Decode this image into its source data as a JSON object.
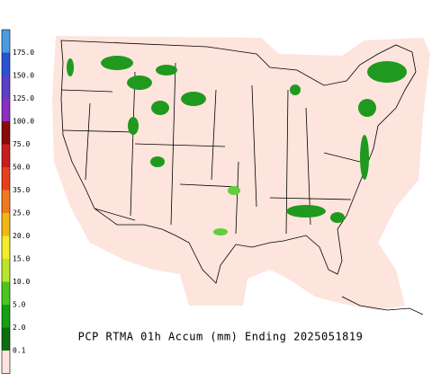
{
  "title": "PCP RTMA 01h Accum (mm) Ending 2025051819",
  "legend": {
    "labels": [
      "175.0",
      "150.0",
      "125.0",
      "100.0",
      "75.0",
      "50.0",
      "35.0",
      "25.0",
      "20.0",
      "15.0",
      "10.0",
      "5.0",
      "2.0",
      "0.1"
    ],
    "colors": [
      "#4c9be0",
      "#2a52d4",
      "#5a3fc8",
      "#8a2fc0",
      "#8b0a0a",
      "#c81e1e",
      "#e8401c",
      "#f07a1e",
      "#f0b814",
      "#f4ec28",
      "#b8e62c",
      "#4cc61e",
      "#14a014",
      "#0c6e0c",
      "#fde4dc"
    ]
  }
}
